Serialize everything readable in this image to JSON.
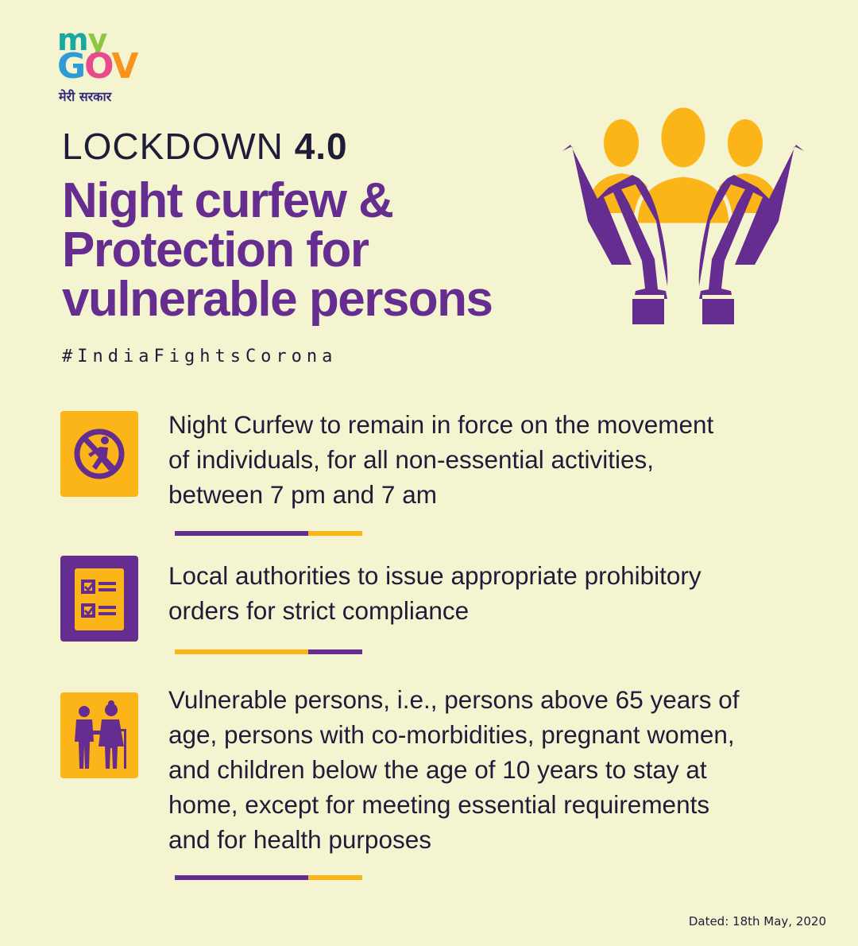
{
  "logo": {
    "my": "my",
    "gov": "GOV",
    "hindi": "मेरी सरकार",
    "colors": {
      "m": "#1aa9a0",
      "y": "#8dc63f",
      "G": "#2e9bd6",
      "O": "#e94a8c",
      "V": "#f7941d"
    }
  },
  "header": {
    "lockdown_prefix": "LOCKDOWN",
    "lockdown_number": "4.0",
    "title_line1": "Night curfew &",
    "title_line2": "Protection for",
    "title_line3": "vulnerable persons",
    "hashtag": "#IndiaFightsCorona"
  },
  "items": [
    {
      "icon": "no-walking-icon",
      "text_line1": "Night Curfew to remain in force on the movement",
      "text_line2": "of individuals, for all non-essential activities,",
      "text_line3": "between 7 pm and 7 am"
    },
    {
      "icon": "checklist-icon",
      "text_line1": "Local authorities to issue appropriate prohibitory",
      "text_line2": "orders for strict compliance"
    },
    {
      "icon": "elderly-couple-icon",
      "text_line1": "Vulnerable persons, i.e., persons above 65 years of",
      "text_line2": "age, persons with co-morbidities, pregnant women,",
      "text_line3": "and children below the age of 10 years to stay at",
      "text_line4": "home, except for meeting essential requirements",
      "text_line5": "and for health purposes"
    }
  ],
  "footer": {
    "dated": "Dated: 18th May, 2020"
  },
  "colors": {
    "background": "#f4f5d0",
    "purple": "#652d8f",
    "yellow": "#fbb519",
    "text": "#1f1c3a"
  }
}
